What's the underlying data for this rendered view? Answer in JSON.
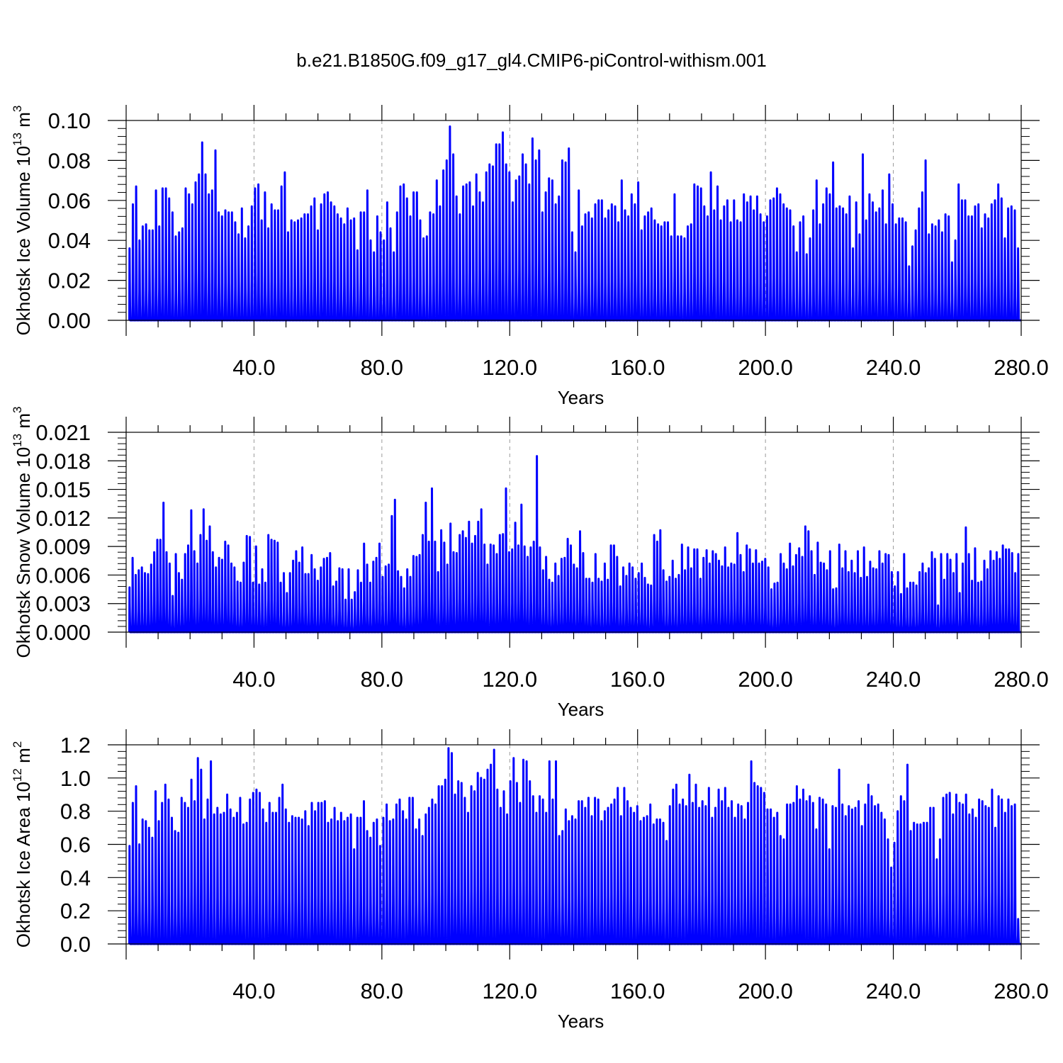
{
  "figure": {
    "title": "b.e21.B1850G.f09_g17_gl4.CMIP6-piControl-withism.001",
    "line_color": "#0000ff"
  },
  "chart_data": [
    {
      "type": "line",
      "ylabel_main": "Okhotsk Ice Volume 10",
      "ylabel_exp": "13",
      "ylabel_unit": " m",
      "ylabel_unit_exp": "3",
      "xlabel": "Years",
      "xlim": [
        0,
        280
      ],
      "ylim": [
        0,
        0.1
      ],
      "xticks": [
        40,
        80,
        120,
        160,
        200,
        240,
        280
      ],
      "xtick_labels": [
        "40.0",
        "80.0",
        "120.0",
        "160.0",
        "200.0",
        "240.0",
        "280.0"
      ],
      "yticks": [
        0,
        0.02,
        0.04,
        0.06,
        0.08,
        0.1
      ],
      "ytick_labels": [
        "0.00",
        "0.02",
        "0.04",
        "0.06",
        "0.08",
        "0.10"
      ],
      "grid_x": "dashed",
      "series": [
        {
          "annual_max": [
            0.036,
            0.058,
            0.067,
            0.04,
            0.047,
            0.048,
            0.045,
            0.045,
            0.065,
            0.047,
            0.066,
            0.066,
            0.061,
            0.054,
            0.042,
            0.044,
            0.046,
            0.066,
            0.063,
            0.058,
            0.069,
            0.073,
            0.089,
            0.073,
            0.063,
            0.065,
            0.085,
            0.054,
            0.052,
            0.055,
            0.054,
            0.054,
            0.049,
            0.043,
            0.056,
            0.041,
            0.047,
            0.057,
            0.066,
            0.068,
            0.05,
            0.064,
            0.046,
            0.058,
            0.055,
            0.055,
            0.067,
            0.074,
            0.044,
            0.05,
            0.049,
            0.05,
            0.051,
            0.053,
            0.053,
            0.057,
            0.061,
            0.045,
            0.058,
            0.063,
            0.064,
            0.059,
            0.057,
            0.053,
            0.051,
            0.048,
            0.056,
            0.05,
            0.051,
            0.035,
            0.054,
            0.054,
            0.065,
            0.04,
            0.034,
            0.052,
            0.044,
            0.04,
            0.059,
            0.046,
            0.034,
            0.054,
            0.067,
            0.068,
            0.061,
            0.052,
            0.064,
            0.064,
            0.05,
            0.041,
            0.042,
            0.054,
            0.053,
            0.07,
            0.057,
            0.075,
            0.08,
            0.097,
            0.083,
            0.062,
            0.053,
            0.067,
            0.068,
            0.069,
            0.057,
            0.073,
            0.064,
            0.059,
            0.074,
            0.078,
            0.077,
            0.088,
            0.088,
            0.094,
            0.078,
            0.074,
            0.059,
            0.07,
            0.072,
            0.083,
            0.078,
            0.068,
            0.091,
            0.08,
            0.085,
            0.054,
            0.064,
            0.071,
            0.07,
            0.058,
            0.062,
            0.08,
            0.079,
            0.086,
            0.044,
            0.034,
            0.065,
            0.047,
            0.053,
            0.054,
            0.051,
            0.058,
            0.06,
            0.06,
            0.051,
            0.055,
            0.058,
            0.057,
            0.049,
            0.07,
            0.055,
            0.052,
            0.063,
            0.058,
            0.069,
            0.045,
            0.052,
            0.054,
            0.056,
            0.05,
            0.048,
            0.047,
            0.049,
            0.049,
            0.042,
            0.063,
            0.042,
            0.042,
            0.041,
            0.047,
            0.048,
            0.068,
            0.067,
            0.066,
            0.057,
            0.052,
            0.074,
            0.055,
            0.067,
            0.05,
            0.057,
            0.06,
            0.049,
            0.06,
            0.05,
            0.049,
            0.063,
            0.059,
            0.062,
            0.055,
            0.062,
            0.053,
            0.049,
            0.052,
            0.06,
            0.061,
            0.066,
            0.063,
            0.058,
            0.056,
            0.055,
            0.047,
            0.034,
            0.049,
            0.052,
            0.033,
            0.041,
            0.055,
            0.07,
            0.048,
            0.058,
            0.066,
            0.063,
            0.079,
            0.056,
            0.057,
            0.056,
            0.053,
            0.062,
            0.036,
            0.059,
            0.043,
            0.083,
            0.05,
            0.063,
            0.059,
            0.054,
            0.056,
            0.065,
            0.048,
            0.073,
            0.058,
            0.048,
            0.051,
            0.051,
            0.049,
            0.027,
            0.037,
            0.045,
            0.056,
            0.064,
            0.08,
            0.043,
            0.048,
            0.047,
            0.05,
            0.044,
            0.053,
            0.052,
            0.029,
            0.04,
            0.068,
            0.06,
            0.06,
            0.052,
            0.052,
            0.057,
            0.058,
            0.046,
            0.053,
            0.051,
            0.058,
            0.06,
            0.068,
            0.061,
            0.041,
            0.056,
            0.057,
            0.055,
            0.036
          ]
        }
      ]
    },
    {
      "type": "line",
      "ylabel_main": "Okhotsk Snow Volume 10",
      "ylabel_exp": "13",
      "ylabel_unit": " m",
      "ylabel_unit_exp": "3",
      "xlabel": "Years",
      "xlim": [
        0,
        280
      ],
      "ylim": [
        0,
        0.021
      ],
      "xticks": [
        40,
        80,
        120,
        160,
        200,
        240,
        280
      ],
      "xtick_labels": [
        "40.0",
        "80.0",
        "120.0",
        "160.0",
        "200.0",
        "240.0",
        "280.0"
      ],
      "yticks": [
        0,
        0.003,
        0.006,
        0.009,
        0.012,
        0.015,
        0.018,
        0.021
      ],
      "ytick_labels": [
        "0.000",
        "0.003",
        "0.006",
        "0.009",
        "0.012",
        "0.015",
        "0.018",
        "0.021"
      ],
      "grid_x": "dashed",
      "series": [
        {
          "annual_max": [
            0.0047,
            0.0078,
            0.006,
            0.0065,
            0.0068,
            0.0062,
            0.0061,
            0.0071,
            0.0084,
            0.0097,
            0.0097,
            0.0136,
            0.0084,
            0.0072,
            0.0038,
            0.0082,
            0.0062,
            0.0055,
            0.0082,
            0.0091,
            0.0128,
            0.0085,
            0.0072,
            0.0102,
            0.0129,
            0.0096,
            0.0111,
            0.0084,
            0.0068,
            0.0078,
            0.0076,
            0.0095,
            0.0091,
            0.0072,
            0.0068,
            0.0053,
            0.0052,
            0.0073,
            0.0101,
            0.01,
            0.0052,
            0.009,
            0.005,
            0.0066,
            0.0052,
            0.0102,
            0.0097,
            0.0096,
            0.0094,
            0.0052,
            0.0062,
            0.0041,
            0.0062,
            0.0075,
            0.0085,
            0.0073,
            0.0089,
            0.0061,
            0.0061,
            0.0081,
            0.0066,
            0.0054,
            0.0068,
            0.0077,
            0.0078,
            0.0083,
            0.0048,
            0.0053,
            0.0067,
            0.0066,
            0.0034,
            0.0066,
            0.0034,
            0.0042,
            0.0065,
            0.0052,
            0.0093,
            0.0071,
            0.0052,
            0.0074,
            0.0078,
            0.0093,
            0.0058,
            0.0069,
            0.0071,
            0.0122,
            0.0139,
            0.0064,
            0.0058,
            0.0046,
            0.0066,
            0.0058,
            0.008,
            0.0079,
            0.0081,
            0.0102,
            0.0136,
            0.0095,
            0.0151,
            0.0095,
            0.0063,
            0.0107,
            0.0094,
            0.0071,
            0.0114,
            0.0084,
            0.0083,
            0.0102,
            0.0106,
            0.0099,
            0.0116,
            0.0093,
            0.0101,
            0.0116,
            0.0129,
            0.0092,
            0.0071,
            0.0092,
            0.0091,
            0.0082,
            0.0102,
            0.0103,
            0.0151,
            0.0084,
            0.0087,
            0.0115,
            0.0091,
            0.0134,
            0.009,
            0.0079,
            0.0089,
            0.0095,
            0.0185,
            0.0089,
            0.0065,
            0.0079,
            0.0055,
            0.0052,
            0.0072,
            0.0059,
            0.0077,
            0.0078,
            0.0098,
            0.0091,
            0.0071,
            0.0067,
            0.0106,
            0.0083,
            0.0056,
            0.0056,
            0.0052,
            0.0082,
            0.0056,
            0.0053,
            0.0072,
            0.0055,
            0.0091,
            0.0091,
            0.0079,
            0.0048,
            0.0068,
            0.0059,
            0.0072,
            0.0068,
            0.0056,
            0.0062,
            0.0072,
            0.0057,
            0.005,
            0.0049,
            0.0102,
            0.0095,
            0.0107,
            0.0065,
            0.0053,
            0.0058,
            0.0075,
            0.0056,
            0.006,
            0.0092,
            0.0065,
            0.0089,
            0.0067,
            0.0087,
            0.0087,
            0.0056,
            0.0078,
            0.0086,
            0.0072,
            0.0085,
            0.0082,
            0.0075,
            0.0069,
            0.0089,
            0.0068,
            0.0072,
            0.0071,
            0.0104,
            0.0081,
            0.0063,
            0.0091,
            0.0087,
            0.0072,
            0.0086,
            0.0072,
            0.0074,
            0.0077,
            0.0068,
            0.0045,
            0.0051,
            0.0052,
            0.0082,
            0.0072,
            0.0066,
            0.0093,
            0.0069,
            0.0081,
            0.0088,
            0.0079,
            0.0111,
            0.0106,
            0.0085,
            0.006,
            0.0094,
            0.0073,
            0.0072,
            0.0065,
            0.0085,
            0.0045,
            0.0046,
            0.0092,
            0.0067,
            0.0085,
            0.0063,
            0.0075,
            0.0062,
            0.0085,
            0.0057,
            0.0089,
            0.0058,
            0.0074,
            0.0067,
            0.0066,
            0.0085,
            0.0072,
            0.0082,
            0.0081,
            0.0063,
            0.0048,
            0.0063,
            0.004,
            0.0082,
            0.0046,
            0.0052,
            0.0052,
            0.0049,
            0.0063,
            0.0072,
            0.0062,
            0.0067,
            0.0084,
            0.0077,
            0.0028,
            0.0082,
            0.0055,
            0.0082,
            0.0076,
            0.0062,
            0.0082,
            0.0041,
            0.0072,
            0.011,
            0.0082,
            0.0054,
            0.0088,
            0.0052,
            0.0053,
            0.0075,
            0.0066,
            0.0085,
            0.0075,
            0.0084,
            0.0077,
            0.0091,
            0.0087,
            0.0087,
            0.0083,
            0.0062,
            0.0082
          ]
        }
      ]
    },
    {
      "type": "line",
      "ylabel_main": "Okhotsk Ice Area 10",
      "ylabel_exp": "12",
      "ylabel_unit": " m",
      "ylabel_unit_exp": "2",
      "xlabel": "Years",
      "xlim": [
        0,
        280
      ],
      "ylim": [
        0,
        1.2
      ],
      "xticks": [
        40,
        80,
        120,
        160,
        200,
        240,
        280
      ],
      "xtick_labels": [
        "40.0",
        "80.0",
        "120.0",
        "160.0",
        "200.0",
        "240.0",
        "280.0"
      ],
      "yticks": [
        0,
        0.2,
        0.4,
        0.6,
        0.8,
        1.0,
        1.2
      ],
      "ytick_labels": [
        "0.0",
        "0.2",
        "0.4",
        "0.6",
        "0.8",
        "1.0",
        "1.2"
      ],
      "grid_x": "dashed",
      "series": [
        {
          "annual_max": [
            0.59,
            0.85,
            0.95,
            0.6,
            0.75,
            0.74,
            0.7,
            0.64,
            0.92,
            0.74,
            0.85,
            0.96,
            0.87,
            0.76,
            0.68,
            0.67,
            0.88,
            0.85,
            0.82,
            0.99,
            0.86,
            1.12,
            1.05,
            0.75,
            0.87,
            1.1,
            0.78,
            0.82,
            0.78,
            0.79,
            0.9,
            0.81,
            0.76,
            0.79,
            0.88,
            0.72,
            0.73,
            0.87,
            0.91,
            0.93,
            0.91,
            0.81,
            0.73,
            0.85,
            0.79,
            0.79,
            0.88,
            0.96,
            0.81,
            0.73,
            0.77,
            0.76,
            0.76,
            0.75,
            0.8,
            0.71,
            0.85,
            0.8,
            0.85,
            0.85,
            0.86,
            0.73,
            0.75,
            0.82,
            0.74,
            0.79,
            0.74,
            0.76,
            0.78,
            0.57,
            0.76,
            0.76,
            0.86,
            0.68,
            0.64,
            0.73,
            0.75,
            0.59,
            0.76,
            0.84,
            0.74,
            0.75,
            0.84,
            0.87,
            0.8,
            0.75,
            0.88,
            0.88,
            0.69,
            0.75,
            0.65,
            0.78,
            0.82,
            0.87,
            0.84,
            0.95,
            0.95,
            0.99,
            1.18,
            1.15,
            0.9,
            0.98,
            0.97,
            0.88,
            0.79,
            0.95,
            0.92,
            1.03,
            1.0,
            0.99,
            1.05,
            1.08,
            1.17,
            0.93,
            0.82,
            0.92,
            0.78,
            0.98,
            1.12,
            0.97,
            0.85,
            1.11,
            1.1,
            0.98,
            0.89,
            0.79,
            0.89,
            0.87,
            0.79,
            1.1,
            0.87,
            1.1,
            0.65,
            0.68,
            0.81,
            0.74,
            0.77,
            0.75,
            0.86,
            0.86,
            0.82,
            0.88,
            0.77,
            0.88,
            0.87,
            0.74,
            0.8,
            0.82,
            0.84,
            0.87,
            0.94,
            0.77,
            0.94,
            0.86,
            0.82,
            0.79,
            0.83,
            0.74,
            0.76,
            0.77,
            0.84,
            0.72,
            0.75,
            0.75,
            0.73,
            0.62,
            0.83,
            0.93,
            0.96,
            0.84,
            0.87,
            0.83,
            1.02,
            0.85,
            0.96,
            0.82,
            0.86,
            0.83,
            0.94,
            0.76,
            0.82,
            0.93,
            0.86,
            0.94,
            0.82,
            0.86,
            0.76,
            0.84,
            0.83,
            0.75,
            0.85,
            1.1,
            0.97,
            0.95,
            0.94,
            0.91,
            0.81,
            0.81,
            0.76,
            0.79,
            0.65,
            0.63,
            0.84,
            0.84,
            0.85,
            0.95,
            0.87,
            0.93,
            0.86,
            0.89,
            0.85,
            0.69,
            0.88,
            0.87,
            0.84,
            0.57,
            0.83,
            0.82,
            1.05,
            0.84,
            0.77,
            0.83,
            0.81,
            0.82,
            0.86,
            0.71,
            0.84,
            0.96,
            0.89,
            0.83,
            0.84,
            0.79,
            0.75,
            0.63,
            0.46,
            0.61,
            0.8,
            0.89,
            0.86,
            1.08,
            0.68,
            0.73,
            0.72,
            0.72,
            0.73,
            0.73,
            0.82,
            0.82,
            0.51,
            0.63,
            0.88,
            0.9,
            0.91,
            0.78,
            0.9,
            0.85,
            0.84,
            0.9,
            0.78,
            0.81,
            0.76,
            0.87,
            0.86,
            0.83,
            0.82,
            0.93,
            0.7,
            0.89,
            0.87,
            0.79,
            0.87,
            0.83,
            0.84,
            0.15
          ]
        }
      ]
    }
  ]
}
